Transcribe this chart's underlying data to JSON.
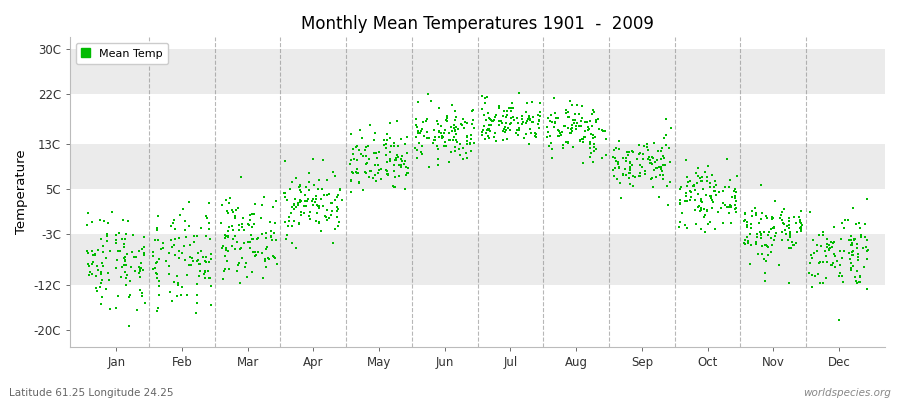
{
  "title": "Monthly Mean Temperatures 1901  -  2009",
  "ylabel": "Temperature",
  "yticks": [
    -20,
    -12,
    -3,
    5,
    13,
    22,
    30
  ],
  "ytick_labels": [
    "-20C",
    "-12C",
    "-3C",
    "5C",
    "13C",
    "22C",
    "30C"
  ],
  "ylim": [
    -23,
    32
  ],
  "months": [
    "Jan",
    "Feb",
    "Mar",
    "Apr",
    "May",
    "Jun",
    "Jul",
    "Aug",
    "Sep",
    "Oct",
    "Nov",
    "Dec"
  ],
  "month_means": [
    -7.5,
    -8.0,
    -3.5,
    2.5,
    9.5,
    14.5,
    17.0,
    15.5,
    9.5,
    3.5,
    -2.5,
    -6.0
  ],
  "month_stds": [
    4.5,
    4.5,
    3.5,
    3.0,
    3.0,
    2.5,
    2.0,
    2.5,
    2.5,
    2.5,
    3.0,
    3.5
  ],
  "n_years": 109,
  "dot_color": "#00BB00",
  "dot_size": 2.5,
  "legend_label": "Mean Temp",
  "band_colors": [
    "#ffffff",
    "#ebebeb"
  ],
  "grid_color": "#888888",
  "bottom_left_text": "Latitude 61.25 Longitude 24.25",
  "bottom_right_text": "worldspecies.org",
  "bg_color": "#ffffff",
  "plot_bg_color": "#ffffff"
}
